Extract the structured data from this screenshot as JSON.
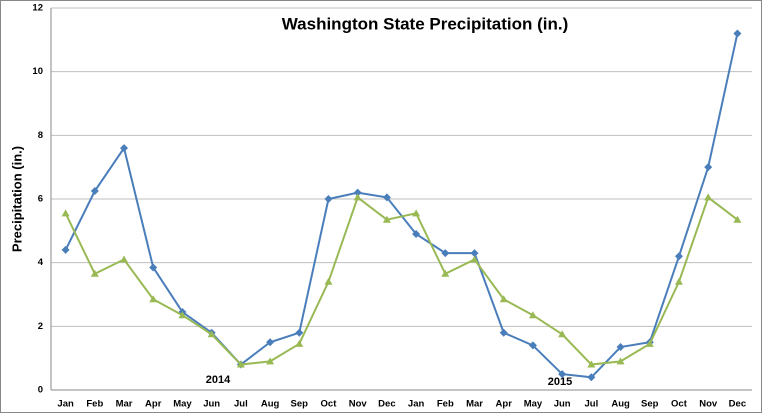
{
  "chart_data": {
    "type": "line",
    "title": "Washington State Precipitation (in.)",
    "y_label": "Precipitation (in.)",
    "annotations": [
      "2014",
      "2015"
    ],
    "categories": [
      "Jan",
      "Feb",
      "Mar",
      "Apr",
      "May",
      "Jun",
      "Jul",
      "Aug",
      "Sep",
      "Oct",
      "Nov",
      "Dec",
      "Jan",
      "Feb",
      "Mar",
      "Apr",
      "May",
      "Jun",
      "Jul",
      "Aug",
      "Sep",
      "Oct",
      "Nov",
      "Dec"
    ],
    "series": [
      {
        "color": "#4a7ebb",
        "marker": "diamond",
        "values": [
          4.4,
          6.25,
          7.6,
          3.85,
          2.45,
          1.8,
          0.8,
          1.5,
          1.8,
          6.0,
          6.2,
          6.05,
          4.9,
          4.3,
          4.3,
          1.8,
          1.4,
          0.5,
          0.4,
          1.35,
          1.5,
          4.2,
          7.0,
          11.2
        ]
      },
      {
        "color": "#98b954",
        "marker": "triangle",
        "values": [
          5.55,
          3.65,
          4.1,
          2.85,
          2.35,
          1.75,
          0.8,
          0.9,
          1.45,
          3.4,
          6.05,
          5.35,
          5.55,
          3.65,
          4.1,
          2.85,
          2.35,
          1.75,
          0.8,
          0.9,
          1.45,
          3.4,
          6.05,
          5.35
        ]
      }
    ],
    "ylim": [
      0,
      12
    ],
    "yticks": [
      0,
      2,
      4,
      6,
      8,
      10,
      12
    ],
    "grid": true
  }
}
